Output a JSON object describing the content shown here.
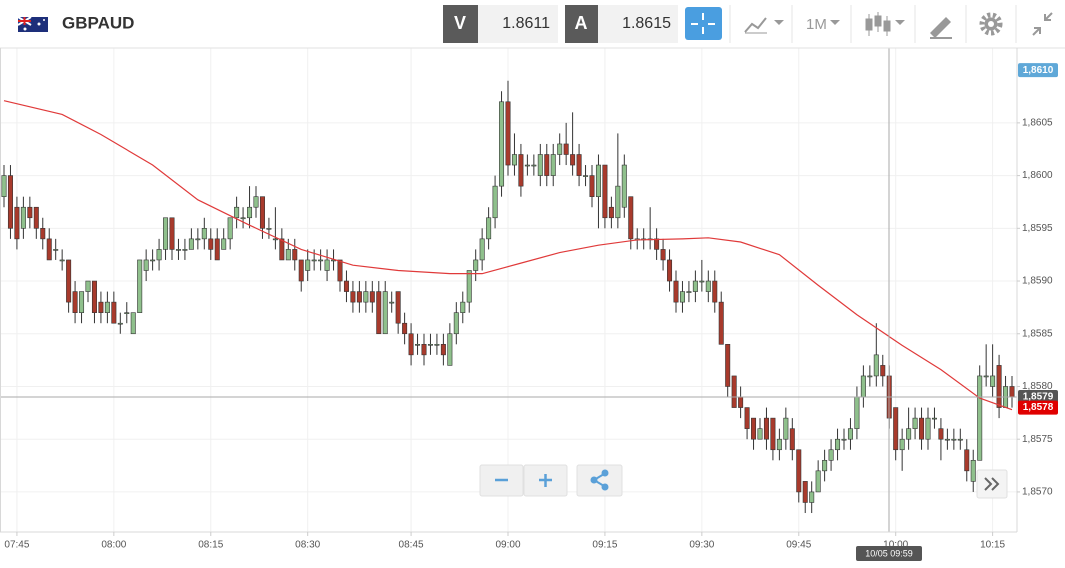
{
  "toolbar": {
    "symbol": "GBPAUD",
    "bid_label": "V",
    "bid": 1.8611,
    "ask_label": "A",
    "ask": 1.8615,
    "period": "1M"
  },
  "chart_data": {
    "type": "candlestick",
    "categories": [
      null,
      null,
      "07:45",
      null,
      null,
      null,
      null,
      null,
      null,
      null,
      null,
      null,
      null,
      null,
      null,
      null,
      null,
      "08:00",
      null,
      null,
      null,
      null,
      null,
      null,
      null,
      null,
      null,
      null,
      null,
      null,
      null,
      null,
      "08:15",
      null,
      null,
      null,
      null,
      null,
      null,
      null,
      null,
      null,
      null,
      null,
      null,
      null,
      null,
      "08:30",
      null,
      null,
      null,
      null,
      null,
      null,
      null,
      null,
      null,
      null,
      null,
      null,
      null,
      null,
      null,
      "08:45",
      null,
      null,
      null,
      null,
      null,
      null,
      null,
      null,
      null,
      null,
      null,
      null,
      null,
      null,
      "09:00",
      null,
      null,
      null,
      null,
      null,
      null,
      null,
      null,
      null,
      null,
      null,
      null,
      null,
      null,
      "09:15",
      null,
      null,
      null,
      null,
      null,
      null,
      null,
      null,
      null,
      null,
      null,
      null,
      null,
      null,
      "09:30",
      null,
      null,
      null,
      null,
      null,
      null,
      null,
      null,
      null,
      null,
      null,
      null,
      null,
      null,
      "09:45",
      null,
      null,
      null,
      null,
      null,
      null,
      null,
      null,
      null,
      null,
      null,
      null,
      null,
      null,
      "10:00",
      null,
      null,
      null,
      null,
      null,
      null,
      null,
      null,
      null,
      null,
      null,
      null,
      null,
      null,
      "10:15",
      null,
      null,
      null
    ],
    "open": [
      1.8598,
      1.86,
      1.8597,
      1.8595,
      1.8597,
      1.8597,
      1.8595,
      1.8594,
      1.8593,
      1.8592,
      1.8592,
      1.8589,
      1.8587,
      1.8589,
      1.859,
      1.8588,
      1.8587,
      1.8588,
      1.8586,
      1.8587,
      1.8585,
      1.8587,
      1.8591,
      1.8592,
      1.8592,
      1.8593,
      1.8596,
      1.8593,
      1.8593,
      1.8593,
      1.8594,
      1.8594,
      1.8594,
      1.8594,
      1.8593,
      1.8594,
      1.8596,
      1.8596,
      1.8596,
      1.8597,
      1.8598,
      1.8595,
      1.8594,
      1.8594,
      1.8592,
      1.8593,
      1.8592,
      1.8591,
      1.8592,
      1.8592,
      1.8591,
      1.8592,
      1.8592,
      1.859,
      1.8589,
      1.8589,
      1.8588,
      1.8589,
      1.8589,
      1.8585,
      1.8588,
      1.8589,
      1.8586,
      1.8585,
      1.8584,
      1.8584,
      1.8584,
      1.8584,
      1.8584,
      1.8582,
      1.8585,
      1.8587,
      1.8588,
      1.8591,
      1.8592,
      1.8594,
      1.8596,
      1.8599,
      1.8607,
      1.8601,
      1.8602,
      1.8601,
      1.8601,
      1.86,
      1.8602,
      1.86,
      1.8602,
      1.8603,
      1.8602,
      1.8602,
      1.86,
      1.86,
      1.8598,
      1.8601,
      1.8597,
      1.8596,
      1.8597,
      1.8598,
      1.8594,
      1.8594,
      1.8594,
      1.8594,
      1.8593,
      1.8592,
      1.859,
      1.8588,
      1.8589,
      1.8589,
      1.859,
      1.8589,
      1.859,
      1.8588,
      1.8584,
      1.8581,
      1.8579,
      1.8578,
      1.8577,
      1.8575,
      1.8577,
      1.8577,
      1.8574,
      1.8575,
      1.8576,
      1.8574,
      1.8571,
      1.8569,
      1.857,
      1.8572,
      1.8573,
      1.8574,
      1.8575,
      1.8575,
      1.8576,
      1.8579,
      1.8581,
      1.8581,
      1.8582,
      1.8581,
      1.8578,
      1.8574,
      1.8575,
      1.8576,
      1.8577,
      1.8575,
      1.8577,
      1.8576,
      1.8575,
      1.8575,
      1.8575,
      1.8574,
      1.8571,
      1.8573,
      1.8581,
      1.858,
      1.8582,
      1.8578,
      1.858
    ],
    "high": [
      1.8601,
      1.8601,
      1.8598,
      1.8598,
      1.8598,
      1.8597,
      1.8596,
      1.8595,
      1.8594,
      1.8593,
      1.8592,
      1.859,
      1.8589,
      1.859,
      1.859,
      1.8589,
      1.8589,
      1.8589,
      1.8587,
      1.8588,
      1.8587,
      1.8592,
      1.8593,
      1.8593,
      1.8594,
      1.8596,
      1.8596,
      1.8594,
      1.8594,
      1.8595,
      1.8595,
      1.8596,
      1.8595,
      1.8595,
      1.8595,
      1.8596,
      1.8598,
      1.8597,
      1.8599,
      1.8599,
      1.8598,
      1.8596,
      1.8597,
      1.8595,
      1.8594,
      1.8594,
      1.8592,
      1.8593,
      1.8593,
      1.8593,
      1.8593,
      1.8593,
      1.8592,
      1.8591,
      1.859,
      1.859,
      1.859,
      1.859,
      1.859,
      1.859,
      1.8589,
      1.8589,
      1.8587,
      1.8586,
      1.8585,
      1.8585,
      1.8585,
      1.8585,
      1.8585,
      1.8586,
      1.8588,
      1.8589,
      1.8591,
      1.8593,
      1.8595,
      1.8597,
      1.86,
      1.8608,
      1.8609,
      1.8604,
      1.8603,
      1.8602,
      1.8602,
      1.8603,
      1.8603,
      1.8603,
      1.8604,
      1.8605,
      1.8606,
      1.8603,
      1.8601,
      1.8601,
      1.8602,
      1.8601,
      1.8598,
      1.8604,
      1.8602,
      1.8598,
      1.8595,
      1.8595,
      1.8597,
      1.8595,
      1.8594,
      1.8593,
      1.8591,
      1.859,
      1.859,
      1.8591,
      1.8592,
      1.8591,
      1.8591,
      1.8589,
      1.8584,
      1.8581,
      1.858,
      1.8578,
      1.8577,
      1.8577,
      1.8578,
      1.8577,
      1.8576,
      1.8578,
      1.8577,
      1.8574,
      1.8571,
      1.8571,
      1.8573,
      1.8574,
      1.8575,
      1.8576,
      1.8576,
      1.8577,
      1.858,
      1.8582,
      1.8582,
      1.8586,
      1.8583,
      1.8582,
      1.8578,
      1.8576,
      1.8578,
      1.8578,
      1.8578,
      1.8578,
      1.8578,
      1.8577,
      1.8576,
      1.8576,
      1.8576,
      1.8575,
      1.8574,
      1.8582,
      1.8584,
      1.8584,
      1.8583,
      1.8581,
      1.8581
    ],
    "low": [
      1.8597,
      1.8594,
      1.8593,
      1.8594,
      1.8595,
      1.8594,
      1.8593,
      1.8592,
      1.8592,
      1.8591,
      1.8587,
      1.8586,
      1.8586,
      1.8588,
      1.8586,
      1.8586,
      1.8586,
      1.8586,
      1.8585,
      1.8586,
      1.8585,
      1.8587,
      1.859,
      1.8591,
      1.8591,
      1.8592,
      1.8592,
      1.8592,
      1.8592,
      1.8593,
      1.8593,
      1.8593,
      1.8592,
      1.8592,
      1.8593,
      1.8593,
      1.8595,
      1.8595,
      1.8595,
      1.8596,
      1.8594,
      1.8594,
      1.8593,
      1.8592,
      1.8592,
      1.8591,
      1.8589,
      1.859,
      1.8591,
      1.8591,
      1.859,
      1.8591,
      1.8589,
      1.8588,
      1.8587,
      1.8587,
      1.8587,
      1.8587,
      1.8585,
      1.8585,
      1.8587,
      1.8585,
      1.8584,
      1.8582,
      1.8583,
      1.8582,
      1.8583,
      1.8583,
      1.8582,
      1.8582,
      1.8584,
      1.8586,
      1.8587,
      1.859,
      1.8591,
      1.8593,
      1.8595,
      1.8598,
      1.86,
      1.86,
      1.8598,
      1.86,
      1.86,
      1.8599,
      1.8599,
      1.8599,
      1.8601,
      1.8601,
      1.86,
      1.8599,
      1.8599,
      1.8597,
      1.8595,
      1.8595,
      1.8595,
      1.8595,
      1.8596,
      1.8593,
      1.8593,
      1.8593,
      1.8593,
      1.8592,
      1.8591,
      1.8589,
      1.8587,
      1.8587,
      1.8588,
      1.8588,
      1.8589,
      1.8588,
      1.8587,
      1.8584,
      1.8579,
      1.8578,
      1.8577,
      1.8575,
      1.8574,
      1.8575,
      1.8574,
      1.8573,
      1.8573,
      1.8574,
      1.8573,
      1.8569,
      1.8568,
      1.8568,
      1.857,
      1.8571,
      1.8572,
      1.8573,
      1.8574,
      1.8574,
      1.8575,
      1.8578,
      1.858,
      1.858,
      1.858,
      1.8576,
      1.8573,
      1.8572,
      1.8574,
      1.8575,
      1.8574,
      1.8574,
      1.8576,
      1.8573,
      1.8574,
      1.8574,
      1.8574,
      1.8571,
      1.857,
      1.8573,
      1.858,
      1.8579,
      1.8577,
      1.8578,
      1.8578
    ],
    "close": [
      1.86,
      1.8595,
      1.8594,
      1.8597,
      1.8596,
      1.8595,
      1.8594,
      1.8592,
      1.8593,
      1.8592,
      1.8588,
      1.8587,
      1.8589,
      1.859,
      1.8587,
      1.8587,
      1.8588,
      1.8586,
      1.8586,
      1.8587,
      1.8587,
      1.8592,
      1.8592,
      1.8592,
      1.8593,
      1.8596,
      1.8593,
      1.8593,
      1.8593,
      1.8594,
      1.8594,
      1.8595,
      1.8593,
      1.8592,
      1.8594,
      1.8596,
      1.8597,
      1.8596,
      1.8597,
      1.8598,
      1.8595,
      1.8595,
      1.8594,
      1.8592,
      1.8593,
      1.8592,
      1.859,
      1.8592,
      1.8592,
      1.8592,
      1.8592,
      1.8592,
      1.859,
      1.8589,
      1.8588,
      1.8588,
      1.8589,
      1.8588,
      1.8585,
      1.8589,
      1.8588,
      1.8586,
      1.8585,
      1.8583,
      1.8584,
      1.8583,
      1.8584,
      1.8584,
      1.8583,
      1.8585,
      1.8587,
      1.8588,
      1.8591,
      1.8592,
      1.8594,
      1.8596,
      1.8599,
      1.8607,
      1.8601,
      1.8602,
      1.8599,
      1.8601,
      1.8601,
      1.8602,
      1.86,
      1.8602,
      1.8603,
      1.8602,
      1.8601,
      1.86,
      1.86,
      1.8598,
      1.8601,
      1.8596,
      1.8596,
      1.8599,
      1.8601,
      1.8594,
      1.8594,
      1.8594,
      1.8594,
      1.8593,
      1.8592,
      1.859,
      1.8588,
      1.8589,
      1.8589,
      1.859,
      1.859,
      1.859,
      1.8588,
      1.8584,
      1.858,
      1.8578,
      1.8578,
      1.8576,
      1.8575,
      1.8576,
      1.8575,
      1.8574,
      1.8575,
      1.8577,
      1.8574,
      1.857,
      1.8569,
      1.857,
      1.8572,
      1.8573,
      1.8574,
      1.8575,
      1.8575,
      1.8576,
      1.8579,
      1.8581,
      1.8581,
      1.8583,
      1.8581,
      1.8577,
      1.8574,
      1.8575,
      1.8576,
      1.8577,
      1.8575,
      1.8577,
      1.8577,
      1.8575,
      1.8575,
      1.8575,
      1.8575,
      1.8572,
      1.8573,
      1.8581,
      1.8581,
      1.8581,
      1.8578,
      1.858,
      1.8579
    ],
    "up_color": "#8fc08c",
    "down_color": "#a83a2c",
    "ma": {
      "color": "#e03a3a",
      "x": [
        0,
        9,
        15,
        23,
        30,
        38,
        46,
        54,
        61,
        69,
        74,
        80,
        86,
        92,
        98,
        105,
        109,
        114,
        120,
        126,
        132,
        139,
        145,
        151,
        156
      ],
      "values": [
        1.86071,
        1.86058,
        1.86039,
        1.8601,
        1.85977,
        1.85953,
        1.8593,
        1.85915,
        1.8591,
        1.85907,
        1.85907,
        1.85917,
        1.85927,
        1.85934,
        1.85939,
        1.8594,
        1.85941,
        1.85937,
        1.85925,
        1.85896,
        1.85868,
        1.85839,
        1.85816,
        1.85789,
        1.85778
      ]
    },
    "ylim": [
      1.85662,
      1.86121
    ],
    "yticks": [
      {
        "value": 1.857,
        "label": "1,8570"
      },
      {
        "value": 1.8575,
        "label": "1,8575"
      },
      {
        "value": 1.858,
        "label": "1,8580"
      },
      {
        "value": 1.8585,
        "label": "1,8585"
      },
      {
        "value": 1.859,
        "label": "1,8590"
      },
      {
        "value": 1.8595,
        "label": "1,8595"
      },
      {
        "value": 1.86,
        "label": "1,8600"
      },
      {
        "value": 1.8605,
        "label": "1,8605"
      }
    ],
    "grid": true,
    "markers": [
      {
        "value": 1.861,
        "label": "1,8610",
        "color": "#5fa8d8"
      },
      {
        "value": 1.8579,
        "label": "1,8579",
        "color": "#555555"
      },
      {
        "value": 1.8578,
        "label": "1,8578",
        "color": "#e00000"
      }
    ],
    "crosshair_label": "10/05 09:59"
  }
}
